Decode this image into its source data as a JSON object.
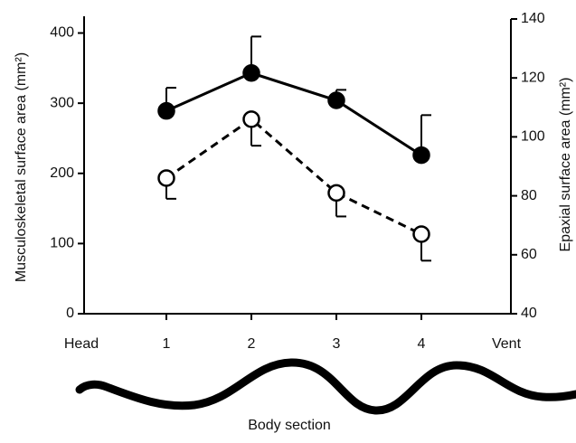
{
  "chart_data": {
    "type": "line",
    "xlabel": "Body section",
    "ylabel": "Musculoskeletal surface area (mm²)",
    "y2label": "Epaxial surface area (mm²)",
    "categories": [
      "Head",
      "1",
      "2",
      "3",
      "4",
      "Vent"
    ],
    "series": [
      {
        "color": "#000000",
        "marker_fill": "#000000",
        "dashed": false,
        "error_direction": "up",
        "values": [
          null,
          289,
          343,
          304,
          226,
          null
        ],
        "errors": [
          null,
          33,
          52,
          15,
          57,
          null
        ]
      },
      {
        "color": "#000000",
        "marker_fill": "#ffffff",
        "dashed": true,
        "axis": "y2",
        "error_direction": "down",
        "values": [
          null,
          86,
          106,
          81,
          67,
          null
        ],
        "errors": [
          null,
          7,
          9,
          8,
          9,
          null
        ]
      }
    ],
    "ylim": [
      0,
      420
    ],
    "yticks": [
      0,
      100,
      200,
      300,
      400
    ],
    "y2lim": [
      40,
      140
    ],
    "y2ticks": [
      40,
      60,
      80,
      100,
      120,
      140
    ]
  }
}
